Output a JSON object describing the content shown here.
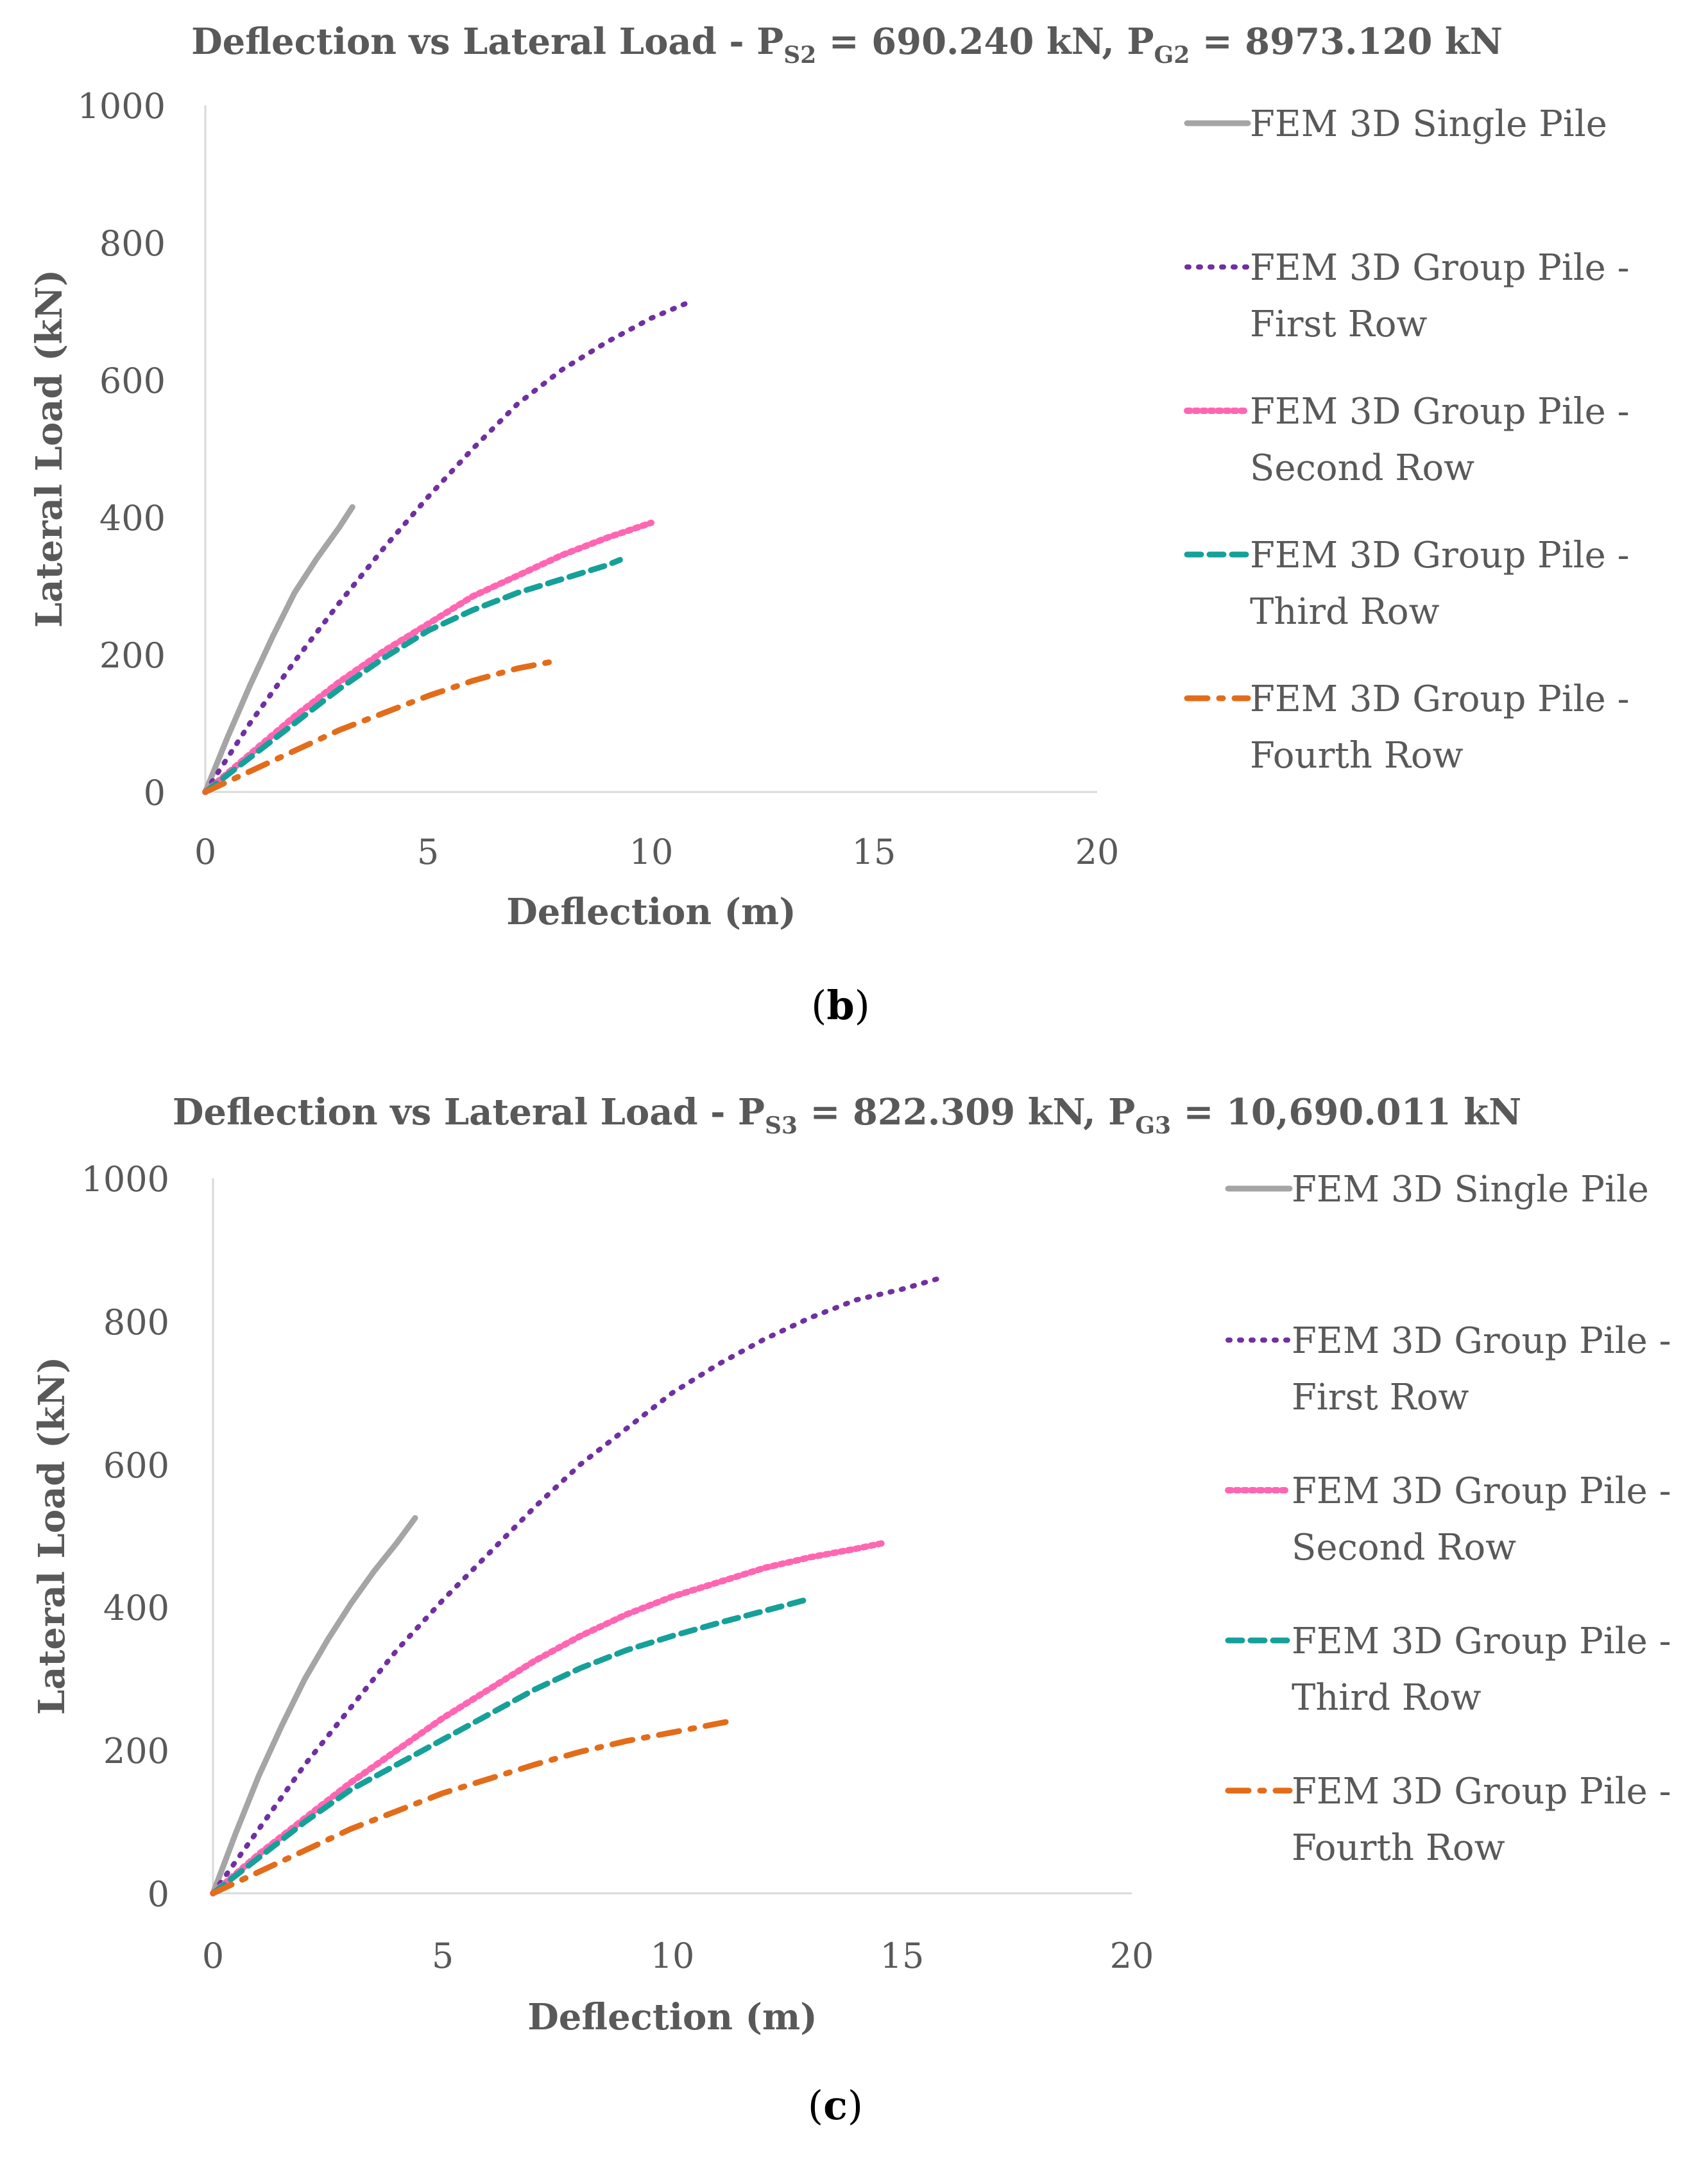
{
  "styles": {
    "FEM 3D Single Pile": {
      "color": "#A5A5A5",
      "dash": "",
      "width": 9
    },
    "FEM 3D Group Pile - First Row": {
      "color": "#7030A0",
      "dash": "3 15",
      "width": 8
    },
    "FEM 3D Group Pile - Second Row": {
      "color": "#FF66B2",
      "dash": "5 7",
      "width": 10
    },
    "FEM 3D Group Pile - Third Row": {
      "color": "#16A09A",
      "dash": "22 13",
      "width": 9
    },
    "FEM 3D Group Pile - Fourth Row": {
      "color": "#E36C1A",
      "dash": "32 18 6 18",
      "width": 9
    }
  },
  "chart_data": [
    {
      "type": "line",
      "panel": {
        "open": "(",
        "letter": "b",
        "close": ")"
      },
      "title": {
        "prefix": "Deflection vs Lateral Load - P",
        "sub1": "S2",
        "mid": " = 690.240 kN, P",
        "sub2": "G2",
        "suffix": " = 8973.120 kN"
      },
      "xlabel": "Deflection (m)",
      "ylabel": "Lateral Load (kN)",
      "xlim": [
        0,
        20
      ],
      "ylim": [
        0,
        1000
      ],
      "xticks": [
        "0",
        "5",
        "10",
        "15",
        "20"
      ],
      "yticks": [
        "0",
        "200",
        "400",
        "600",
        "800",
        "1000"
      ],
      "grid": false,
      "legend_position": "right",
      "series": [
        {
          "name": "FEM 3D Single Pile",
          "legend_lines": [
            "FEM 3D Single Pile"
          ],
          "x": [
            0,
            0.5,
            1.0,
            1.5,
            2.0,
            2.5,
            3.0,
            3.3
          ],
          "y": [
            0,
            80,
            155,
            225,
            290,
            340,
            385,
            415
          ]
        },
        {
          "name": "FEM 3D Group Pile - First Row",
          "legend_lines": [
            "FEM 3D Group Pile -",
            "First Row"
          ],
          "x": [
            0,
            1,
            2,
            3,
            4,
            5,
            6,
            7,
            8,
            9,
            10,
            10.8
          ],
          "y": [
            0,
            100,
            190,
            275,
            355,
            430,
            500,
            565,
            615,
            655,
            690,
            712
          ]
        },
        {
          "name": "FEM 3D Group Pile - Second Row",
          "legend_lines": [
            "FEM 3D Group Pile -",
            "Second Row"
          ],
          "x": [
            0,
            1,
            2,
            3,
            4,
            5,
            6,
            7,
            8,
            9,
            10
          ],
          "y": [
            0,
            55,
            110,
            160,
            205,
            245,
            285,
            315,
            345,
            370,
            392
          ]
        },
        {
          "name": "FEM 3D Group Pile - Third Row",
          "legend_lines": [
            "FEM 3D Group Pile -",
            "Third Row"
          ],
          "x": [
            0,
            1,
            2,
            3,
            4,
            5,
            6,
            7,
            8,
            9,
            9.3
          ],
          "y": [
            0,
            50,
            100,
            150,
            195,
            235,
            265,
            290,
            310,
            330,
            338
          ]
        },
        {
          "name": "FEM 3D Group Pile - Fourth Row",
          "legend_lines": [
            "FEM 3D Group Pile -",
            "Fourth Row"
          ],
          "x": [
            0,
            1,
            2,
            3,
            4,
            5,
            6,
            7,
            7.8
          ],
          "y": [
            0,
            30,
            60,
            90,
            115,
            140,
            162,
            180,
            190
          ]
        }
      ]
    },
    {
      "type": "line",
      "panel": {
        "open": "(",
        "letter": "c",
        "close": ")"
      },
      "title": {
        "prefix": "Deflection vs Lateral Load - P",
        "sub1": "S3",
        "mid": " = 822.309 kN, P",
        "sub2": "G3",
        "suffix": "  = 10,690.011 kN"
      },
      "xlabel": "Deflection (m)",
      "ylabel": "Lateral Load (kN)",
      "xlim": [
        0,
        20
      ],
      "ylim": [
        0,
        1000
      ],
      "xticks": [
        "0",
        "5",
        "10",
        "15",
        "20"
      ],
      "yticks": [
        "0",
        "200",
        "400",
        "600",
        "800",
        "1000"
      ],
      "grid": false,
      "legend_position": "right",
      "series": [
        {
          "name": "FEM 3D Single Pile",
          "legend_lines": [
            "FEM 3D Single Pile"
          ],
          "x": [
            0,
            0.5,
            1.0,
            1.5,
            2.0,
            2.5,
            3.0,
            3.5,
            4.0,
            4.4
          ],
          "y": [
            0,
            85,
            165,
            235,
            300,
            355,
            405,
            450,
            490,
            525
          ]
        },
        {
          "name": "FEM 3D Group Pile - First Row",
          "legend_lines": [
            "FEM 3D Group Pile -",
            "First Row"
          ],
          "x": [
            0,
            1,
            2,
            3,
            4,
            5,
            6,
            7,
            8,
            9,
            10,
            11,
            12,
            13,
            14,
            15,
            15.8
          ],
          "y": [
            0,
            90,
            180,
            260,
            340,
            410,
            475,
            540,
            600,
            650,
            700,
            740,
            775,
            805,
            830,
            845,
            860
          ]
        },
        {
          "name": "FEM 3D Group Pile - Second Row",
          "legend_lines": [
            "FEM 3D Group Pile -",
            "Second Row"
          ],
          "x": [
            0,
            1,
            2,
            3,
            4,
            5,
            6,
            7,
            8,
            9,
            10,
            11,
            12,
            13,
            14,
            14.6
          ],
          "y": [
            0,
            55,
            105,
            155,
            200,
            245,
            285,
            325,
            360,
            390,
            415,
            435,
            455,
            470,
            482,
            490
          ]
        },
        {
          "name": "FEM 3D Group Pile - Third Row",
          "legend_lines": [
            "FEM 3D Group Pile -",
            "Third Row"
          ],
          "x": [
            0,
            1,
            2,
            3,
            4,
            5,
            6,
            7,
            8,
            9,
            10,
            11,
            12,
            13
          ],
          "y": [
            0,
            50,
            100,
            145,
            180,
            215,
            250,
            285,
            315,
            340,
            360,
            378,
            395,
            412
          ]
        },
        {
          "name": "FEM 3D Group Pile - Fourth Row",
          "legend_lines": [
            "FEM 3D Group Pile -",
            "Fourth Row"
          ],
          "x": [
            0,
            1,
            2,
            3,
            4,
            5,
            6,
            7,
            8,
            9,
            10,
            11.2
          ],
          "y": [
            0,
            30,
            60,
            90,
            115,
            140,
            160,
            180,
            198,
            213,
            225,
            240
          ]
        }
      ]
    }
  ]
}
